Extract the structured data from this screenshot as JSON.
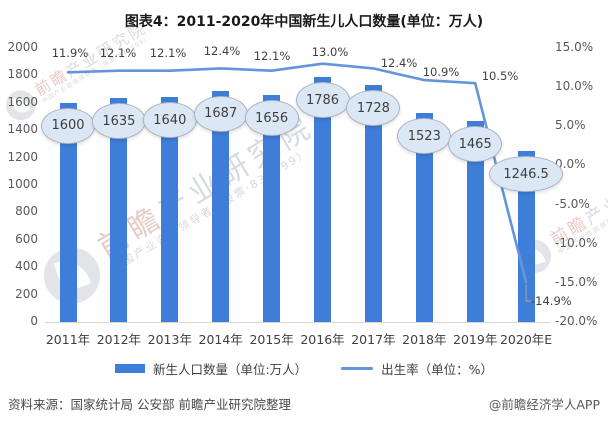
{
  "title": "图表4：2011-2020年中国新生儿人口数量(单位：万人)",
  "chart_data": {
    "type": "bar",
    "subtype": "bar-line-combo",
    "categories": [
      "2011年",
      "2012年",
      "2013年",
      "2014年",
      "2015年",
      "2016年",
      "2017年",
      "2018年",
      "2019年",
      "2020年E"
    ],
    "series": [
      {
        "name": "新生人口数量（单位:万人）",
        "type": "bar",
        "values": [
          1600,
          1635,
          1640,
          1687,
          1656,
          1786,
          1728,
          1523,
          1465,
          1246.5
        ],
        "labels": [
          "1600",
          "1635",
          "1640",
          "1687",
          "1656",
          "1786",
          "1728",
          "1523",
          "1465",
          "1246.5"
        ]
      },
      {
        "name": "出生率（单位：%）",
        "type": "line",
        "values": [
          11.9,
          12.1,
          12.1,
          12.4,
          12.1,
          13.0,
          12.4,
          10.9,
          10.5,
          -14.9
        ],
        "labels": [
          "11.9%",
          "12.1%",
          "12.1%",
          "12.4%",
          "12.1%",
          "13.0%",
          "12.4%",
          "10.9%",
          "10.5%",
          "-14.9%"
        ]
      }
    ],
    "y_axis_left": {
      "ticks": [
        "2000",
        "1800",
        "1600",
        "1400",
        "1200",
        "1000",
        "800",
        "600",
        "400",
        "200",
        "0"
      ],
      "min": 0,
      "max": 2000
    },
    "y_axis_right": {
      "ticks": [
        "15.0%",
        "10.0%",
        "5.0%",
        "0.0%",
        "-5.0%",
        "-10.0%",
        "-15.0%",
        "-20.0%"
      ],
      "min": -20,
      "max": 15
    },
    "grid": false,
    "legend_position": "bottom"
  },
  "legend": {
    "bar_label": "新生人口数量（单位:万人）",
    "line_label": "出生率（单位：%）"
  },
  "footer": {
    "source": "资料来源：国家统计局 公安部 前瞻产业研究院整理",
    "credit": "@前瞻经济学人APP"
  },
  "watermark": {
    "logo_icon": "qianzhan-logo-icon",
    "main_red": "前瞻",
    "main_rest": "产业研究院",
    "sub": "中国产业咨询领导者（股票·839599）"
  },
  "colors": {
    "bar": "#3E7DD8",
    "line": "#6395DA",
    "ellipse_fill": "#DCE7F5",
    "ellipse_border": "#AEB4BF",
    "leader": "#A6A6A6",
    "axis_text": "#595959",
    "baseline": "#D6D6D6"
  }
}
